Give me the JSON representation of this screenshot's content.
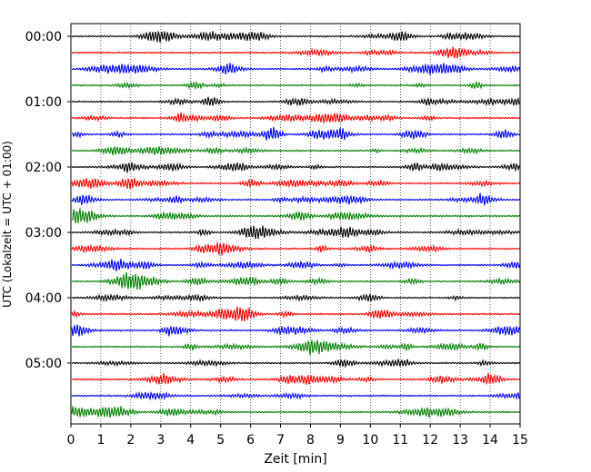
{
  "chart_data": {
    "type": "line",
    "xlabel": "Zeit  [min]",
    "ylabel": "UTC (Lokalzeit = UTC + 01:00)",
    "xlim": [
      0,
      15
    ],
    "x_ticks": [
      "0",
      "1",
      "2",
      "3",
      "4",
      "5",
      "6",
      "7",
      "8",
      "9",
      "10",
      "11",
      "12",
      "13",
      "14",
      "15"
    ],
    "y_ticks": [
      "00:00",
      "01:00",
      "02:00",
      "03:00",
      "04:00",
      "05:00"
    ],
    "grid": "vertical dotted lines at each minute",
    "trace_interval_minutes": 15,
    "trace_count": 24,
    "trace_colors": [
      "#000000",
      "#ff0000",
      "#0000ff",
      "#008000"
    ]
  }
}
